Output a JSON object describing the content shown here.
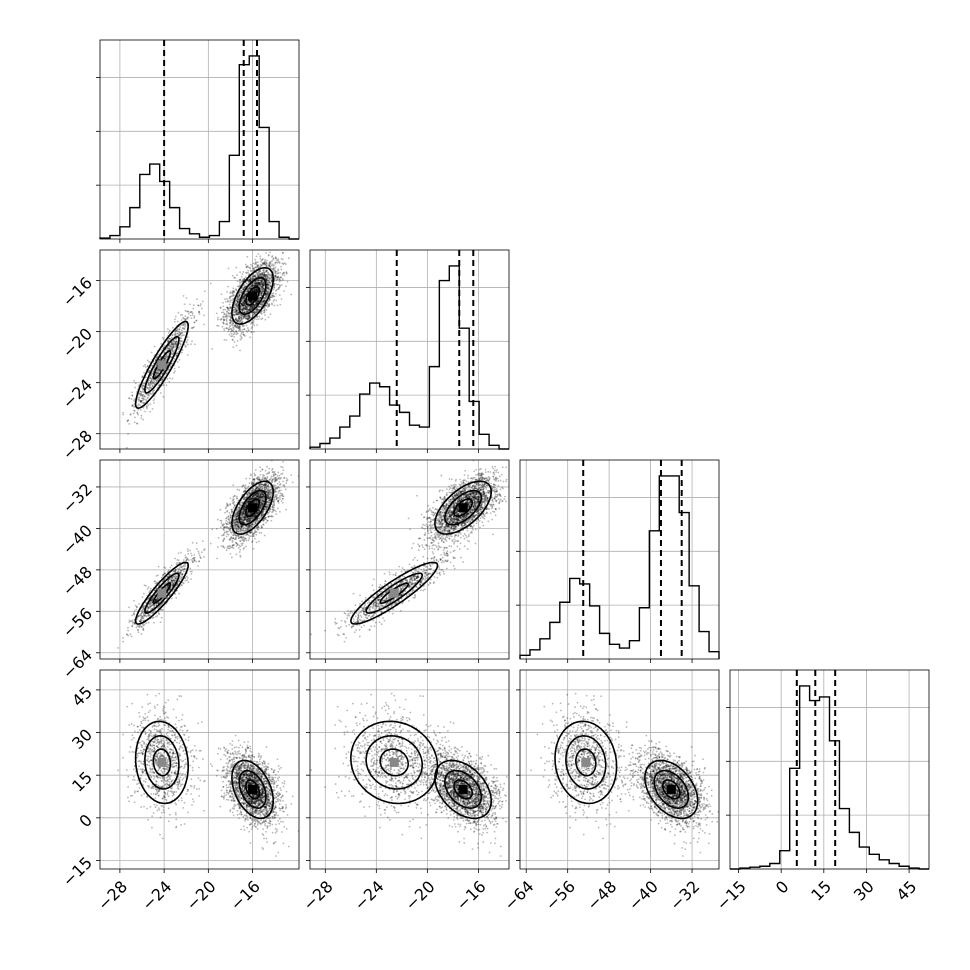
{
  "chart_data": {
    "type": "corner",
    "n_params": 4,
    "ticks": [
      {
        "values": [
          -28,
          -24,
          -20,
          -16
        ],
        "labels": [
          "−28",
          "−24",
          "−20",
          "−16"
        ],
        "range": [
          -29.8,
          -11.8
        ]
      },
      {
        "values": [
          -28,
          -24,
          -20,
          -16
        ],
        "labels": [
          "−28",
          "−24",
          "−20",
          "−16"
        ],
        "range": [
          -29.2,
          -13.6
        ]
      },
      {
        "values": [
          -64,
          -56,
          -48,
          -40,
          -32
        ],
        "labels": [
          "−64",
          "−56",
          "−48",
          "−40",
          "−32"
        ],
        "range": [
          -65.2,
          -26.8
        ]
      },
      {
        "values": [
          -15,
          0,
          15,
          30,
          45
        ],
        "labels": [
          "−15",
          "0",
          "15",
          "30",
          "45"
        ],
        "range": [
          -18,
          52
        ]
      }
    ],
    "histograms": [
      {
        "edges": [
          -29.8,
          -28.9,
          -28.0,
          -27.1,
          -26.2,
          -25.3,
          -24.4,
          -23.5,
          -22.6,
          -21.7,
          -20.8,
          -19.9,
          -19.0,
          -18.1,
          -17.2,
          -16.3,
          -15.4,
          -14.5,
          -13.6,
          -12.7,
          -11.8
        ],
        "counts": [
          0.005,
          0.02,
          0.07,
          0.18,
          0.37,
          0.43,
          0.33,
          0.18,
          0.06,
          0.03,
          0.01,
          0.02,
          0.1,
          0.48,
          1.0,
          1.05,
          0.64,
          0.1,
          0.01,
          0.0
        ],
        "quantiles": [
          -24.0,
          -16.8,
          -15.6
        ]
      },
      {
        "edges": [
          -29.2,
          -28.42,
          -27.64,
          -26.86,
          -26.08,
          -25.3,
          -24.52,
          -23.74,
          -22.96,
          -22.18,
          -21.4,
          -20.62,
          -19.84,
          -19.06,
          -18.28,
          -17.5,
          -16.72,
          -15.94,
          -15.16,
          -14.38,
          -13.6
        ],
        "counts": [
          0.01,
          0.03,
          0.06,
          0.12,
          0.18,
          0.3,
          0.36,
          0.34,
          0.24,
          0.2,
          0.13,
          0.12,
          0.45,
          0.92,
          1.0,
          0.66,
          0.26,
          0.08,
          0.02,
          0.0
        ],
        "quantiles": [
          -22.4,
          -17.5,
          -16.4
        ]
      },
      {
        "edges": [
          -65.2,
          -63.28,
          -61.36,
          -59.44,
          -57.52,
          -55.6,
          -53.68,
          -51.76,
          -49.84,
          -47.92,
          -46.0,
          -44.08,
          -42.16,
          -40.24,
          -38.32,
          -36.4,
          -34.48,
          -32.56,
          -30.64,
          -28.72,
          -26.8
        ],
        "counts": [
          0.02,
          0.05,
          0.11,
          0.2,
          0.31,
          0.44,
          0.41,
          0.29,
          0.14,
          0.08,
          0.06,
          0.1,
          0.28,
          0.7,
          1.0,
          1.0,
          0.8,
          0.4,
          0.15,
          0.04
        ],
        "quantiles": [
          -53.0,
          -38.0,
          -34.0
        ]
      },
      {
        "edges": [
          -18,
          -14.5,
          -11,
          -7.5,
          -4,
          -0.5,
          3,
          6.5,
          10,
          13.5,
          17,
          20.5,
          24,
          27.5,
          31,
          34.5,
          38,
          41.5,
          45,
          48.5,
          52
        ],
        "counts": [
          0.0,
          0.005,
          0.01,
          0.015,
          0.03,
          0.1,
          0.55,
          1.0,
          0.92,
          0.94,
          0.7,
          0.33,
          0.2,
          0.12,
          0.08,
          0.05,
          0.03,
          0.015,
          0.005,
          0.0
        ],
        "quantiles": [
          5.5,
          12.0,
          19.0
        ]
      }
    ],
    "modes": [
      {
        "weight": 0.3,
        "mean": [
          -24.2,
          -22.6,
          -52.5,
          19.5
        ],
        "sd": [
          1.4,
          2.0,
          3.5,
          8.5
        ],
        "corr": [
          [
            1,
            0.9,
            0.9,
            -0.1
          ],
          [
            0.9,
            1,
            0.9,
            -0.1
          ],
          [
            0.9,
            0.9,
            1,
            -0.1
          ],
          [
            -0.1,
            -0.1,
            -0.1,
            1
          ]
        ]
      },
      {
        "weight": 0.7,
        "mean": [
          -16.0,
          -17.2,
          -36.0,
          10.0
        ],
        "sd": [
          1.1,
          1.3,
          3.0,
          6.0
        ],
        "corr": [
          [
            1,
            0.6,
            0.6,
            -0.4
          ],
          [
            0.6,
            1,
            0.6,
            -0.4
          ],
          [
            0.6,
            0.6,
            1,
            -0.4
          ],
          [
            -0.4,
            -0.4,
            -0.4,
            1
          ]
        ]
      }
    ],
    "n_samples": 3200,
    "grid": true,
    "legend": "none"
  }
}
